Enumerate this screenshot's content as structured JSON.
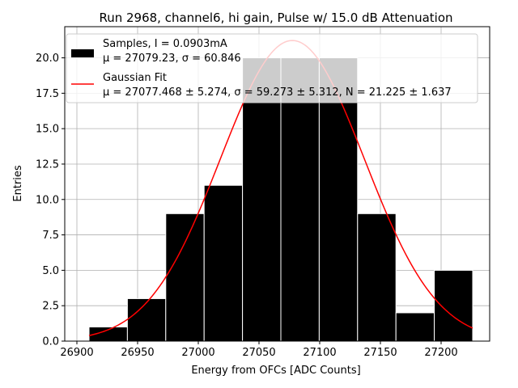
{
  "chart_data": {
    "type": "bar",
    "title": "Run 2968, channel6, hi gain, Pulse w/ 15.0 dB Attenuation",
    "xlabel": "Energy from OFCs [ADC Counts]",
    "ylabel": "Entries",
    "xlim": [
      26890,
      27240
    ],
    "ylim": [
      0,
      22.2
    ],
    "xticks": [
      26900,
      26950,
      27000,
      27050,
      27100,
      27150,
      27200
    ],
    "yticks": [
      0.0,
      2.5,
      5.0,
      7.5,
      10.0,
      12.5,
      15.0,
      17.5,
      20.0
    ],
    "grid": true,
    "legend_position": "top-right",
    "bin_edges": [
      26910.0,
      26941.6,
      26973.2,
      27004.8,
      27036.4,
      27068.0,
      27099.6,
      27131.2,
      27162.8,
      27194.4,
      27226.0
    ],
    "counts": [
      1,
      3,
      9,
      11,
      20,
      20,
      20,
      9,
      2,
      5
    ],
    "bar_color": "#000000",
    "fit_color": "#ff0000",
    "fit": {
      "mu": 27077.468,
      "sigma": 59.273,
      "N": 21.225
    },
    "series": [
      {
        "name": "Samples",
        "legend_line1": "Samples, I = 0.0903mA",
        "legend_line2": "μ = 27079.23, σ = 60.846"
      },
      {
        "name": "Gaussian Fit",
        "legend_line1": "Gaussian Fit",
        "legend_line2": "μ = 27077.468 ± 5.274, σ = 59.273 ± 5.312, N = 21.225 ± 1.637"
      }
    ]
  }
}
